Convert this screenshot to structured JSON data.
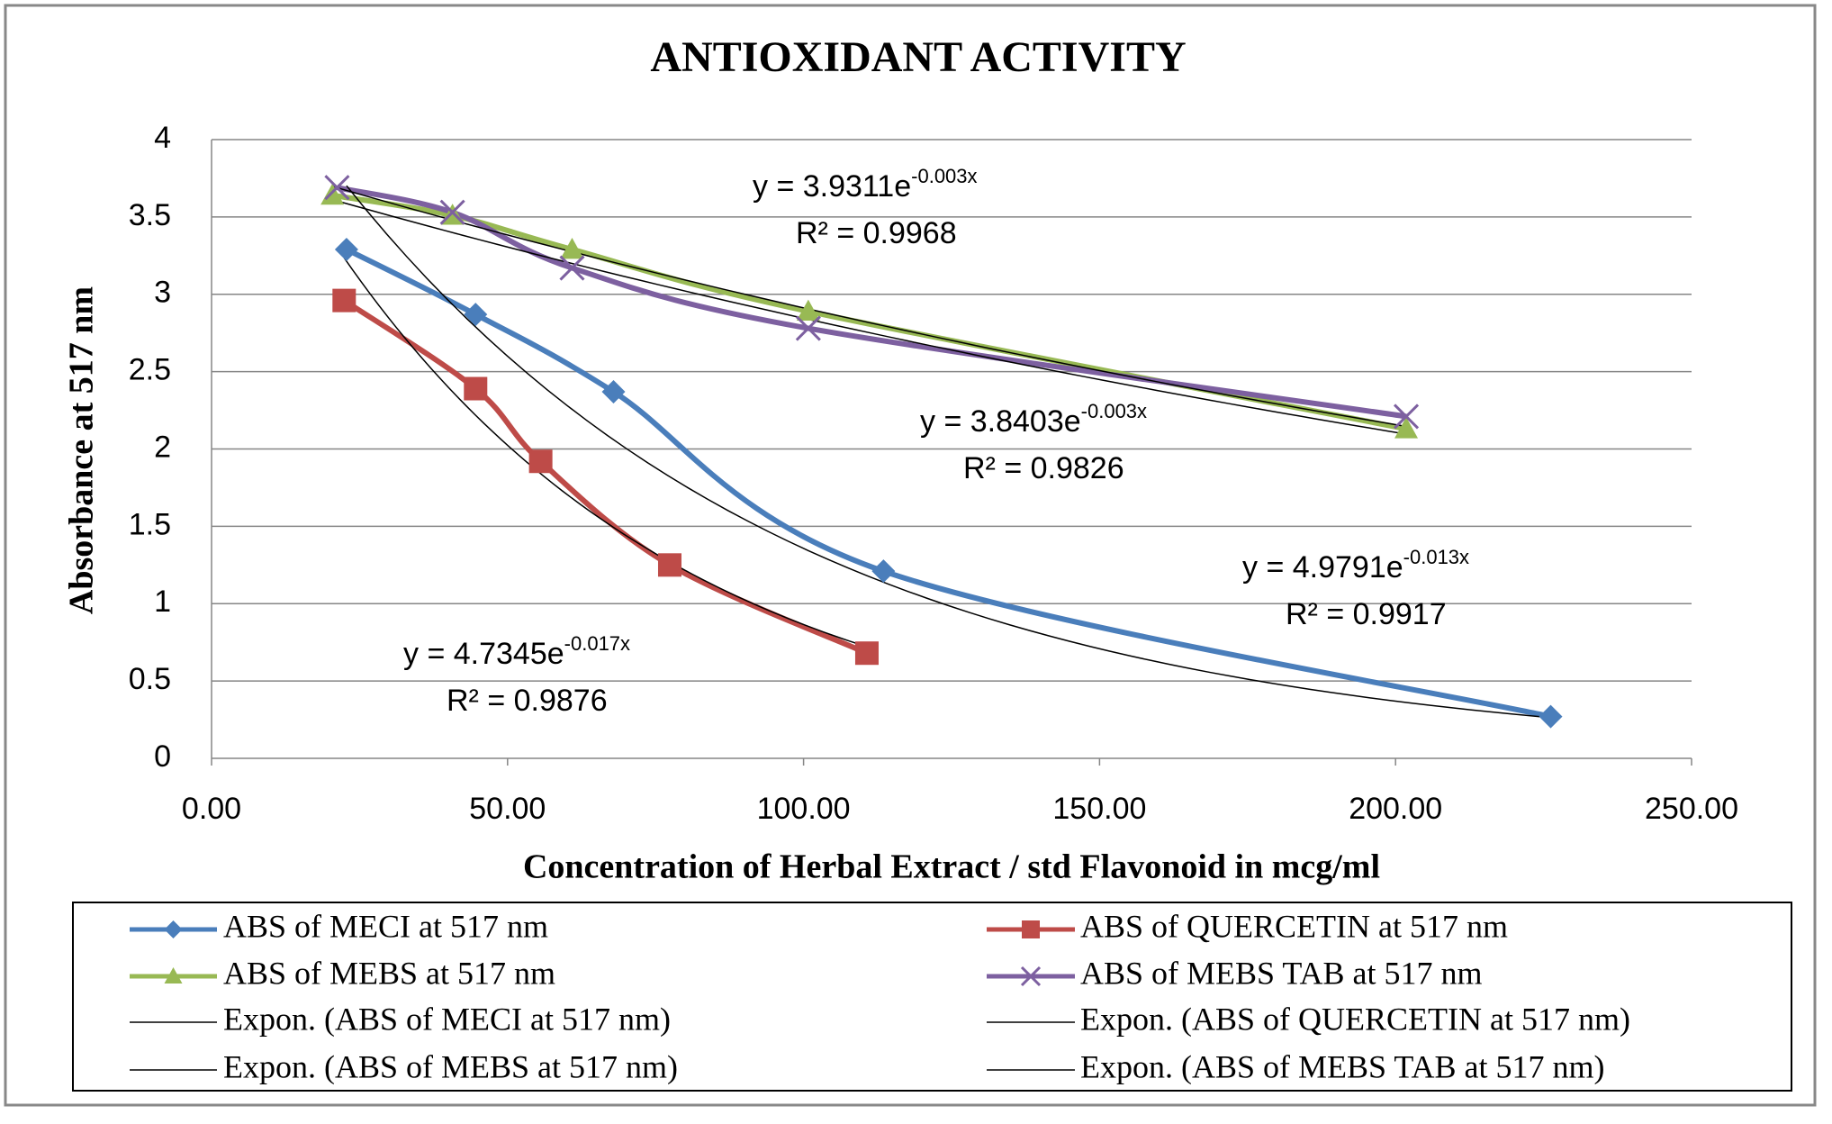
{
  "chart_data": {
    "type": "line",
    "title": "ANTIOXIDANT ACTIVITY",
    "x_label": "Concentration of Herbal Extract / std Flavonoid in mcg/ml",
    "y_label": "Absorbance at 517 nm",
    "xlim": [
      0,
      250
    ],
    "ylim": [
      0,
      4
    ],
    "xticks": [
      {
        "value": 0,
        "label": "0.00"
      },
      {
        "value": 50,
        "label": "50.00"
      },
      {
        "value": 100,
        "label": "100.00"
      },
      {
        "value": 150,
        "label": "150.00"
      },
      {
        "value": 200,
        "label": "200.00"
      },
      {
        "value": 250,
        "label": "250.00"
      }
    ],
    "yticks": [
      0,
      0.5,
      1,
      1.5,
      2,
      2.5,
      3,
      3.5,
      4
    ],
    "grid": true,
    "series": [
      {
        "name": "ABS of MECI at 517 nm",
        "color": "#4a7ebb",
        "marker": "diamond",
        "x": [
          22.8,
          44.6,
          67.9,
          113.5,
          226.2
        ],
        "values": [
          3.29,
          2.87,
          2.37,
          1.21,
          0.27
        ]
      },
      {
        "name": "ABS of QUERCETIN at 517 nm",
        "color": "#be4b48",
        "marker": "square",
        "x": [
          22.4,
          44.6,
          55.6,
          77.4,
          110.7
        ],
        "values": [
          2.96,
          2.39,
          1.92,
          1.25,
          0.68
        ]
      },
      {
        "name": "ABS of MEBS at 517 nm",
        "color": "#98b954",
        "marker": "triangle",
        "x": [
          20.4,
          40.7,
          60.9,
          100.8,
          201.8
        ],
        "values": [
          3.64,
          3.51,
          3.29,
          2.89,
          2.13
        ]
      },
      {
        "name": "ABS of MEBS TAB at 517 nm",
        "color": "#7d60a0",
        "marker": "x",
        "x": [
          21.2,
          40.7,
          60.9,
          100.8,
          201.8
        ],
        "values": [
          3.69,
          3.53,
          3.17,
          2.78,
          2.21
        ]
      }
    ],
    "trendlines": [
      {
        "name": "Expon. (ABS of MECI at 517 nm)",
        "series": 0,
        "color": "#000000",
        "a": 4.9791,
        "b": -0.013,
        "equation": "y = 4.9791e",
        "exponent": "-0.013x",
        "r2": "R² = 0.9917"
      },
      {
        "name": "Expon. (ABS of QUERCETIN at 517 nm)",
        "series": 1,
        "color": "#000000",
        "a": 4.7345,
        "b": -0.017,
        "equation": "y = 4.7345e",
        "exponent": "-0.017x",
        "r2": "R² = 0.9876"
      },
      {
        "name": "Expon. (ABS of MEBS at 517 nm)",
        "series": 2,
        "color": "#000000",
        "a": 3.9311,
        "b": -0.003,
        "equation": "y = 3.9311e",
        "exponent": "-0.003x",
        "r2": "R² = 0.9968"
      },
      {
        "name": "Expon. (ABS of MEBS TAB at 517 nm)",
        "series": 3,
        "color": "#000000",
        "a": 3.8403,
        "b": -0.003,
        "equation": "y = 3.8403e",
        "exponent": "-0.003x",
        "r2": "R² = 0.9826"
      }
    ]
  }
}
